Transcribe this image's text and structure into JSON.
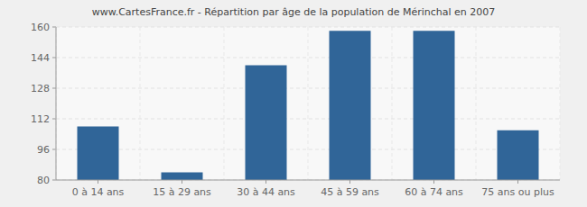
{
  "chart_data": {
    "type": "bar",
    "title": "www.CartesFrance.fr - Répartition par âge de la population de Mérinchal en 2007",
    "categories": [
      "0 à 14 ans",
      "15 à 29 ans",
      "30 à 44 ans",
      "45 à 59 ans",
      "60 à 74 ans",
      "75 ans ou plus"
    ],
    "values": [
      108,
      84,
      140,
      158,
      158,
      106
    ],
    "color": "#306598",
    "ylim": [
      80,
      160
    ],
    "yticks": [
      80,
      96,
      112,
      128,
      144,
      160
    ],
    "grid": true
  }
}
